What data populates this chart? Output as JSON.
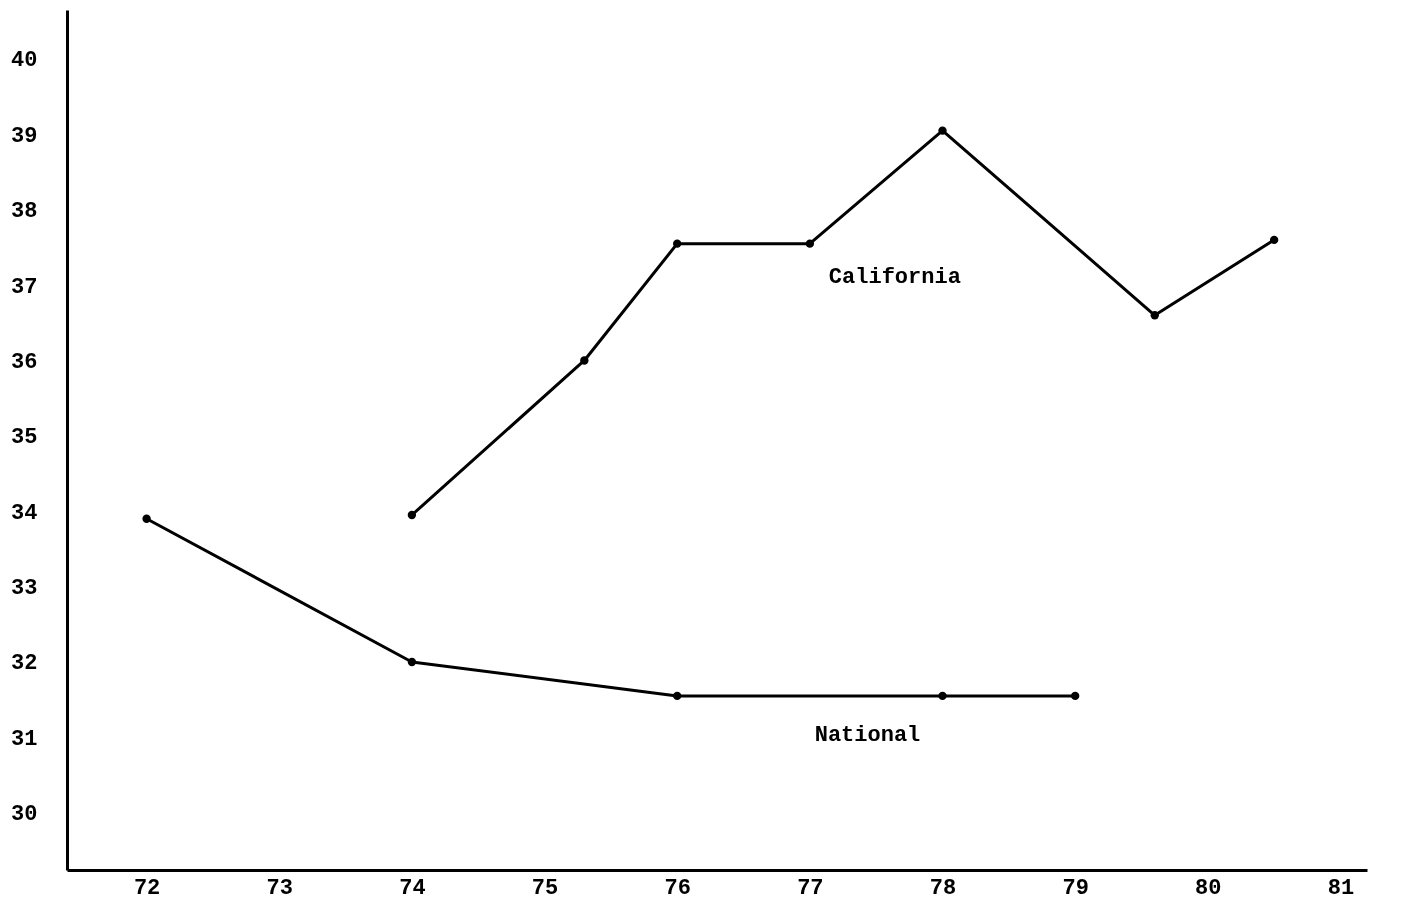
{
  "chart_data": {
    "type": "line",
    "xlim": [
      71.4,
      81.2
    ],
    "ylim": [
      29.24,
      40.65
    ],
    "xticks": [
      72,
      73,
      74,
      75,
      76,
      77,
      78,
      79,
      80,
      81
    ],
    "yticks": [
      30,
      31,
      32,
      33,
      34,
      35,
      36,
      37,
      38,
      39,
      40
    ],
    "grid": false,
    "legend": false,
    "marker": "circle",
    "line_style": "solid",
    "series": [
      {
        "name": "California",
        "color": "#000000",
        "x": [
          74,
          75.3,
          76,
          77,
          78,
          79.6,
          80.5
        ],
        "values": [
          33.95,
          36,
          37.55,
          37.55,
          39.05,
          36.6,
          37.6
        ]
      },
      {
        "name": "National",
        "color": "#000000",
        "x": [
          72,
          74,
          76,
          78,
          79
        ],
        "values": [
          33.9,
          32,
          31.55,
          31.55,
          31.55
        ]
      }
    ]
  }
}
